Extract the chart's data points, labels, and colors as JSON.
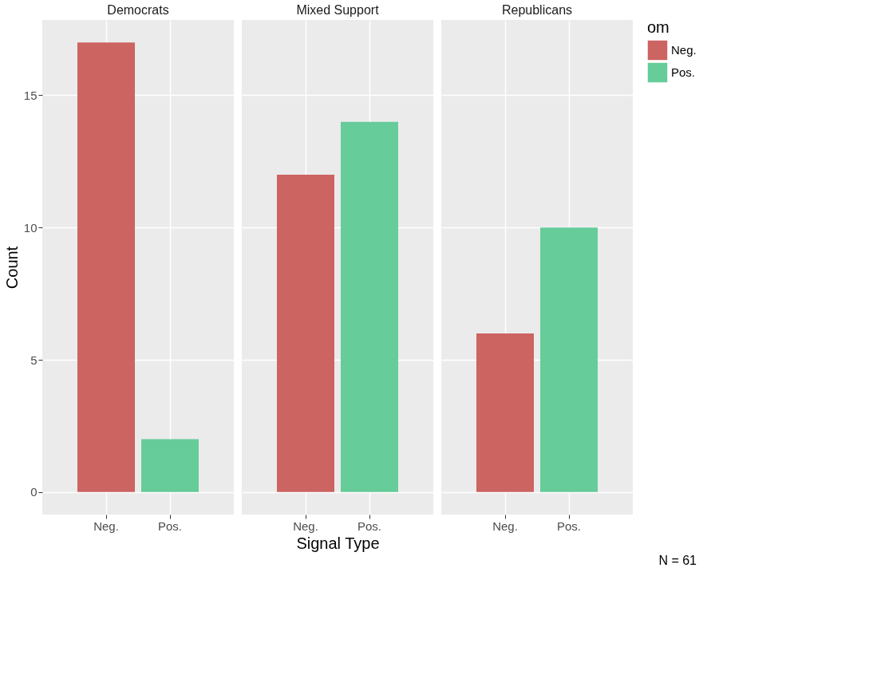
{
  "chart_data": [
    {
      "type": "bar",
      "title": "Democrats",
      "categories": [
        "Neg.",
        "Pos."
      ],
      "series": [
        {
          "color": "#cc6462",
          "values": [
            17,
            null
          ]
        },
        {
          "color": "#66cc99",
          "values": [
            null,
            2
          ]
        }
      ],
      "ylim": [
        -0.85,
        17.85
      ],
      "yticks": [
        0,
        5,
        10,
        15
      ],
      "ylabel": "Count",
      "grid": true,
      "tick_labels": "xy"
    },
    {
      "type": "bar",
      "title": "Mixed Support",
      "categories": [
        "Neg.",
        "Pos."
      ],
      "series": [
        {
          "color": "#cc6462",
          "values": [
            12,
            null
          ]
        },
        {
          "color": "#66cc99",
          "values": [
            null,
            14
          ]
        }
      ],
      "ylim": [
        -0.85,
        17.85
      ],
      "yticks": [
        0,
        5,
        10,
        15
      ],
      "xlabel": "Signal Type",
      "grid": true,
      "tick_labels": "x"
    },
    {
      "type": "bar",
      "title": "Republicans",
      "categories": [
        "Neg.",
        "Pos."
      ],
      "series": [
        {
          "name": "Neg.",
          "color": "#cc6462",
          "values": [
            6,
            null
          ]
        },
        {
          "name": "Pos.",
          "color": "#66cc99",
          "values": [
            null,
            10
          ]
        }
      ],
      "ylim": [
        -0.85,
        17.85
      ],
      "yticks": [
        0,
        5,
        10,
        15
      ],
      "grid": true,
      "tick_labels": "x",
      "legend": "right",
      "legend_title": "om",
      "annotations": [
        "N = 61"
      ]
    }
  ]
}
